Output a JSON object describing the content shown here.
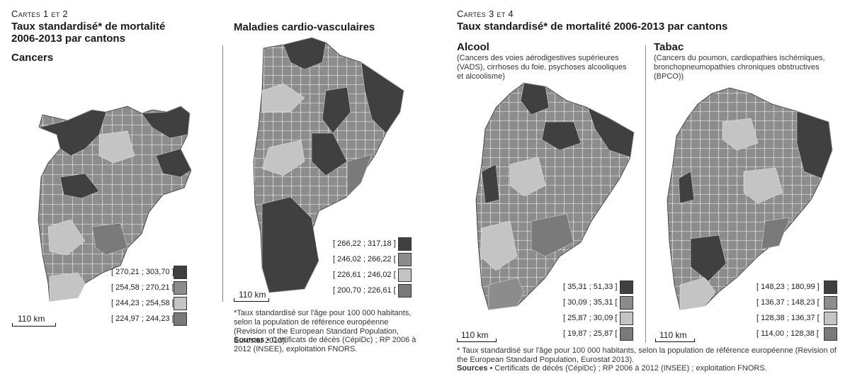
{
  "left_panel": {
    "overline": "Cartes 1 et 2",
    "title": "Taux standardisé* de mortalité 2006-2013 par cantons",
    "map1": {
      "subtitle": "Cancers"
    },
    "map2": {
      "subtitle": "Maladies cardio-vasculaires"
    },
    "footnote": "*Taux standardisé sur l'âge pour 100 000 habitants, selon la population de référence européenne (Revision of the European Standard Population, Eurostat 2013).",
    "sources_label": "Sources",
    "sources_text": " • Certificats de décès (CépiDc) ; RP 2006 à 2012 (INSEE), exploitation FNORS."
  },
  "right_panel": {
    "overline": "Cartes 3 et 4",
    "title": "Taux standardisé* de mortalité 2006-2013 par cantons",
    "map3": {
      "subtitle": "Alcool",
      "description": "(Cancers des voies aérodigestives supérieures (VADS), cirrhoses du foie, psychoses alcooliques et alcoolisme)"
    },
    "map4": {
      "subtitle": "Tabac",
      "description": "(Cancers du poumon, cardiopathies ischémiques, bronchopneumopathies chroniques obstructives (BPCO))"
    },
    "footnote": "* Taux standardisé sur l'âge pour 100 000 habitants, selon la population de référence européenne (Revision of the European Standard Population, Eurostat 2013).",
    "sources_label": "Sources",
    "sources_text": " • Certificats de décès (CépiDc) ; RP 2006 à 2012 (INSEE) ; exploitation FNORS."
  },
  "scale_label": "110 km",
  "colors": {
    "class1": "#404040",
    "class2": "#8c8c8c",
    "class3": "#c4c4c4",
    "class4": "#7a7a7a"
  },
  "legends": {
    "cancers": [
      "[ 270,21 ; 303,70 ]",
      "[ 254,58 ; 270,21 [",
      "[ 244,23 ; 254,58 [",
      "[ 224,97 ; 244,23 ["
    ],
    "cardio": [
      "[ 266,22 ; 317,18 ]",
      "[ 246,02 ; 266,22 [",
      "[ 226,61 ; 246,02 [",
      "[ 200,70 ; 226,61 ["
    ],
    "alcool": [
      "[ 35,31 ; 51,33 ]",
      "[ 30,09 ; 35,31 [",
      "[ 25,87 ; 30,09 [",
      "[ 19,87 ; 25,87 ["
    ],
    "tabac": [
      "[ 148,23 ; 180,99 ]",
      "[ 136,37 ; 148,23 [",
      "[ 128,38 ; 136,37 [",
      "[ 114,00 ; 128,38 ["
    ]
  }
}
